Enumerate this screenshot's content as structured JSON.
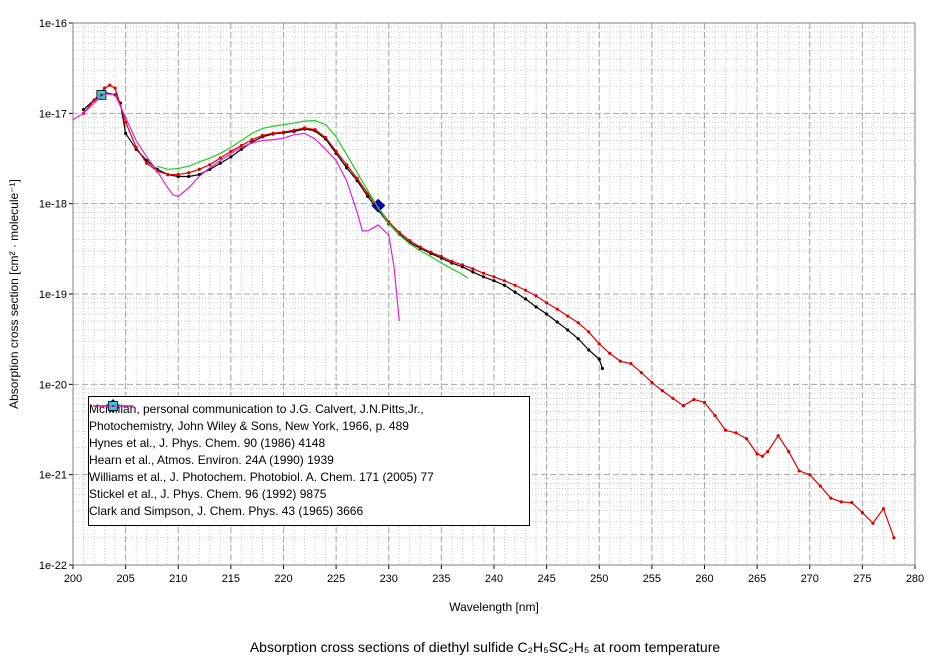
{
  "chart_data": {
    "type": "line",
    "title": "Absorption cross sections of diethyl sulfide C₂H₅SC₂H₅ at room temperature",
    "x_label": "Wavelength [nm]",
    "y_label": "Absorption cross section [cm² · molecule⁻¹]",
    "xlim": [
      200,
      280
    ],
    "xticks": [
      200,
      205,
      210,
      215,
      220,
      225,
      230,
      235,
      240,
      245,
      250,
      255,
      260,
      265,
      270,
      275,
      280
    ],
    "ylim": [
      1e-22,
      1e-16
    ],
    "yticks": [
      {
        "value": 1e-22,
        "label": "1e-22"
      },
      {
        "value": 1e-21,
        "label": "1e-21"
      },
      {
        "value": 1e-20,
        "label": "1e-20"
      },
      {
        "value": 1e-19,
        "label": "1e-19"
      },
      {
        "value": 1e-18,
        "label": "1e-18"
      },
      {
        "value": 1e-17,
        "label": "1e-17"
      },
      {
        "value": 1e-16,
        "label": "1e-16"
      }
    ],
    "log_y": true,
    "grid": true,
    "minor_grid": true,
    "legend_position": "lower left",
    "series": [
      {
        "name": "McMillan, personal communication to J.G. Calvert, J.N.Pitts,Jr., Photochemistry, John Wiley & Sons, New York, 1966, p. 489",
        "color": "#000000",
        "marker": "dot",
        "line": true,
        "x": [
          201,
          202,
          203,
          204,
          204.5,
          205,
          206,
          207,
          208,
          209,
          210,
          211,
          212,
          213,
          214,
          215,
          216,
          217,
          218,
          219,
          220,
          221,
          222,
          223,
          224,
          225,
          226,
          227,
          228,
          229,
          230,
          231,
          232,
          233,
          234,
          235,
          236,
          237,
          238,
          239,
          240,
          241,
          242,
          243,
          244,
          245,
          246,
          247,
          248,
          249,
          250,
          250.3
        ],
        "values": [
          1.1e-17,
          1.4e-17,
          1.7e-17,
          1.6e-17,
          1.3e-17,
          6e-18,
          4e-18,
          3e-18,
          2.4e-18,
          2.1e-18,
          2e-18,
          2e-18,
          2.1e-18,
          2.4e-18,
          2.8e-18,
          3.3e-18,
          4e-18,
          4.8e-18,
          5.5e-18,
          5.9e-18,
          6.1e-18,
          6.3e-18,
          6.7e-18,
          6.4e-18,
          5.2e-18,
          3.6e-18,
          2.5e-18,
          1.8e-18,
          1.2e-18,
          8.5e-19,
          6e-19,
          4.6e-19,
          3.7e-19,
          3.2e-19,
          2.8e-19,
          2.5e-19,
          2.2e-19,
          2e-19,
          1.75e-19,
          1.55e-19,
          1.4e-19,
          1.25e-19,
          1.05e-19,
          8.8e-20,
          7.2e-20,
          6e-20,
          4.9e-20,
          4e-20,
          3.2e-20,
          2.4e-20,
          1.9e-20,
          1.5e-20
        ]
      },
      {
        "name": "Hynes et al., J. Phys. Chem. 90 (1986) 4148",
        "color": "#0000cc",
        "marker": "diamond",
        "line": false,
        "x": [
          229
        ],
        "values": [
          9.5e-19
        ]
      },
      {
        "name": "Hearn et al., Atmos. Environ. 24A (1990) 1939",
        "color": "#e00000",
        "marker": "dot",
        "line": true,
        "x": [
          201,
          202,
          203,
          203.5,
          204,
          205,
          206,
          207,
          208,
          209,
          210,
          211,
          212,
          213,
          214,
          215,
          216,
          217,
          218,
          219,
          220,
          221,
          222,
          223,
          224,
          225,
          226,
          227,
          228,
          229,
          230,
          231,
          232,
          233,
          234,
          235,
          236,
          237,
          238,
          239,
          240,
          241,
          242,
          243,
          244,
          245,
          246,
          247,
          248,
          249,
          250,
          251,
          252,
          253,
          254,
          255,
          256,
          257,
          258,
          259,
          260,
          261,
          262,
          263,
          264,
          265,
          265.5,
          266,
          267,
          268,
          269,
          270,
          271,
          272,
          273,
          274,
          275,
          276,
          277,
          278
        ],
        "values": [
          1e-17,
          1.4e-17,
          1.9e-17,
          2.05e-17,
          1.9e-17,
          8e-18,
          4.2e-18,
          2.8e-18,
          2.3e-18,
          2.1e-18,
          2.1e-18,
          2.2e-18,
          2.4e-18,
          2.7e-18,
          3.2e-18,
          3.8e-18,
          4.4e-18,
          5.1e-18,
          5.7e-18,
          6e-18,
          6.2e-18,
          6.5e-18,
          6.9e-18,
          6.6e-18,
          5.4e-18,
          3.8e-18,
          2.7e-18,
          1.9e-18,
          1.3e-18,
          9e-19,
          6.3e-19,
          4.8e-19,
          3.9e-19,
          3.3e-19,
          2.9e-19,
          2.6e-19,
          2.3e-19,
          2.1e-19,
          1.9e-19,
          1.7e-19,
          1.55e-19,
          1.4e-19,
          1.25e-19,
          1.1e-19,
          9.5e-20,
          8e-20,
          6.8e-20,
          5.7e-20,
          4.8e-20,
          3.8e-20,
          2.8e-20,
          2.2e-20,
          1.8e-20,
          1.7e-20,
          1.35e-20,
          1.05e-20,
          8.5e-21,
          7e-21,
          5.8e-21,
          6.8e-21,
          6.3e-21,
          4.5e-21,
          3.1e-21,
          2.9e-21,
          2.5e-21,
          1.7e-21,
          1.6e-21,
          1.8e-21,
          2.7e-21,
          1.8e-21,
          1.1e-21,
          1e-21,
          7.5e-22,
          5.5e-22,
          5e-22,
          4.9e-22,
          3.8e-22,
          2.9e-22,
          4.2e-22,
          2e-22
        ]
      },
      {
        "name": "Williams et al., J. Photochem. Photobiol. A. Chem. 171 (2005) 77",
        "color": "#22cc22",
        "marker": "none",
        "line": true,
        "x": [
          208,
          209,
          210,
          211,
          212,
          213,
          214,
          215,
          216,
          217,
          218,
          219,
          220,
          221,
          222,
          223,
          224,
          225,
          226,
          227,
          228,
          229,
          230,
          231,
          232,
          233,
          234,
          235,
          236,
          237,
          237.5
        ],
        "values": [
          2.6e-18,
          2.4e-18,
          2.45e-18,
          2.6e-18,
          2.9e-18,
          3.2e-18,
          3.6e-18,
          4.2e-18,
          5e-18,
          6e-18,
          6.8e-18,
          7.2e-18,
          7.5e-18,
          7.8e-18,
          8.2e-18,
          8.3e-18,
          7.5e-18,
          5.5e-18,
          3.5e-18,
          2.2e-18,
          1.4e-18,
          9e-19,
          6e-19,
          4.5e-19,
          3.6e-19,
          3e-19,
          2.6e-19,
          2.2e-19,
          1.9e-19,
          1.65e-19,
          1.5e-19
        ]
      },
      {
        "name": "Stickel et al., J. Phys. Chem. 96 (1992) 9875",
        "color": "#33cccc",
        "marker": "square",
        "line": false,
        "x": [
          202.7
        ],
        "values": [
          1.6e-17
        ]
      },
      {
        "name": "Clark and Simpson, J. Chem. Phys. 43 (1965) 3666",
        "color": "#dd22dd",
        "marker": "none",
        "line": true,
        "x": [
          200,
          201,
          202,
          203,
          204,
          205,
          206,
          207,
          208,
          209,
          209.5,
          210,
          211,
          212,
          213,
          214,
          215,
          216,
          217,
          218,
          219,
          220,
          221,
          222,
          223,
          224,
          225,
          226,
          227,
          227.5,
          228,
          229,
          230,
          230.5,
          231
        ],
        "values": [
          8.5e-18,
          1e-17,
          1.3e-17,
          1.65e-17,
          1.6e-17,
          9e-18,
          5e-18,
          3.3e-18,
          2.3e-18,
          1.5e-18,
          1.25e-18,
          1.2e-18,
          1.5e-18,
          2e-18,
          2.5e-18,
          3e-18,
          3.6e-18,
          4.2e-18,
          4.7e-18,
          5e-18,
          5.1e-18,
          5.3e-18,
          5.8e-18,
          6e-18,
          5.2e-18,
          4e-18,
          3e-18,
          1.8e-18,
          8e-19,
          5e-19,
          5e-19,
          5.8e-19,
          4.5e-19,
          2e-19,
          5e-20
        ]
      }
    ]
  }
}
